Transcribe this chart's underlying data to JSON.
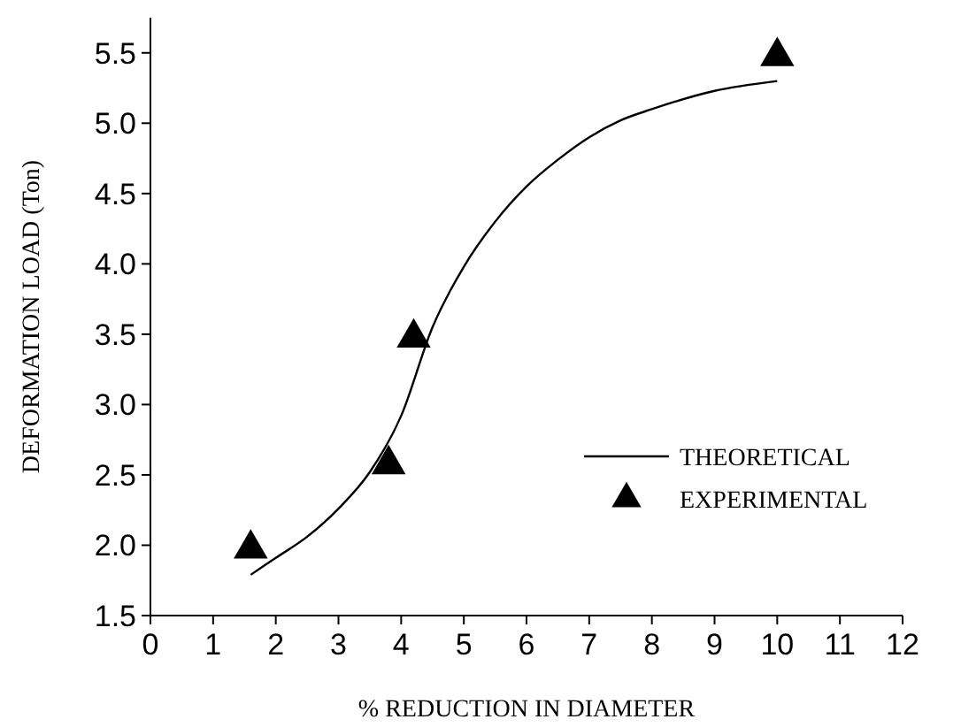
{
  "chart_data": {
    "type": "line",
    "xlabel": "% REDUCTION IN DIAMETER",
    "ylabel": "DEFORMATION LOAD (Ton)",
    "xlim": [
      0,
      12
    ],
    "xticks": [
      0,
      1,
      2,
      3,
      4,
      5,
      6,
      7,
      8,
      9,
      10,
      11,
      12
    ],
    "ylim": [
      1.5,
      5.75
    ],
    "yticks": [
      {
        "value": 1.5,
        "label": "1.5"
      },
      {
        "value": 2,
        "label": "2.0"
      },
      {
        "value": 2.5,
        "label": "2.5"
      },
      {
        "value": 3,
        "label": "3.0"
      },
      {
        "value": 3.5,
        "label": "3.5"
      },
      {
        "value": 4,
        "label": "4.0"
      },
      {
        "value": 4.5,
        "label": "4.5"
      },
      {
        "value": 5,
        "label": "5.0"
      },
      {
        "value": 5.5,
        "label": "5.5"
      }
    ],
    "grid": false,
    "legend": "bottom right",
    "series": [
      {
        "name": "THEORETICAL",
        "color": "#000000",
        "marker": "none",
        "line_style": "solid",
        "x": [
          1.6,
          2,
          2.5,
          3,
          3.5,
          4,
          4.5,
          5,
          5.5,
          6,
          6.5,
          7,
          7.5,
          8,
          9,
          10
        ],
        "values": [
          1.79,
          1.91,
          2.06,
          2.26,
          2.52,
          2.92,
          3.55,
          3.98,
          4.3,
          4.55,
          4.74,
          4.9,
          5.02,
          5.1,
          5.23,
          5.3
        ]
      },
      {
        "name": "EXPERIMENTAL",
        "type": "scatter",
        "color": "#000000",
        "marker": "triangle",
        "x": [
          1.6,
          3.8,
          4.2,
          10
        ],
        "values": [
          2.0,
          2.6,
          3.5,
          5.5
        ]
      }
    ]
  }
}
